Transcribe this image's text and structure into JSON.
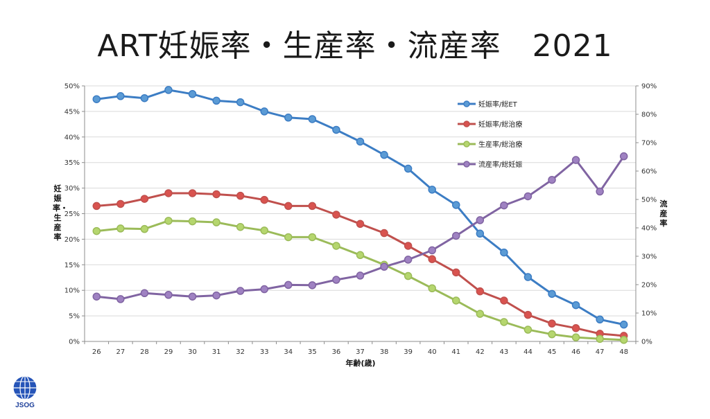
{
  "title": "ART妊娠率・生産率・流産率　2021",
  "logo_text": "JSOG",
  "chart_data": {
    "type": "line",
    "x": [
      26,
      27,
      28,
      29,
      30,
      31,
      32,
      33,
      34,
      35,
      36,
      37,
      38,
      39,
      40,
      41,
      42,
      43,
      44,
      45,
      46,
      47,
      48
    ],
    "xlabel": "年齢(歳)",
    "ylabel_left": "妊娠率・生産率",
    "ylabel_right": "流産率",
    "ylim_left": [
      0,
      50
    ],
    "ylim_right": [
      0,
      90
    ],
    "yticks_left": [
      "0%",
      "5%",
      "10%",
      "15%",
      "20%",
      "25%",
      "30%",
      "35%",
      "40%",
      "45%",
      "50%"
    ],
    "yticks_right": [
      "0%",
      "10%",
      "20%",
      "30%",
      "40%",
      "50%",
      "60%",
      "70%",
      "80%",
      "90%"
    ],
    "legend_position": "top-right-inside",
    "grid": true,
    "series": [
      {
        "name": "妊娠率/総ET",
        "axis": "left",
        "color": "#3c7dc4",
        "marker_color": "#5b9bd5",
        "values": [
          47.4,
          48.0,
          47.6,
          49.2,
          48.4,
          47.1,
          46.8,
          45.0,
          43.8,
          43.5,
          41.4,
          39.1,
          36.5,
          33.8,
          29.7,
          26.7,
          21.1,
          17.4,
          12.6,
          9.3,
          7.1,
          4.3,
          3.3
        ]
      },
      {
        "name": "妊娠率/総治療",
        "axis": "left",
        "color": "#c0504d",
        "marker_color": "#d9534f",
        "values": [
          26.5,
          26.9,
          27.9,
          29.0,
          29.0,
          28.8,
          28.5,
          27.7,
          26.5,
          26.5,
          24.8,
          23.0,
          21.2,
          18.7,
          16.1,
          13.5,
          9.8,
          8.0,
          5.2,
          3.5,
          2.6,
          1.5,
          1.1
        ]
      },
      {
        "name": "生産率/総治療",
        "axis": "left",
        "color": "#9bbb59",
        "marker_color": "#b5d66e",
        "values": [
          21.6,
          22.1,
          22.0,
          23.6,
          23.5,
          23.3,
          22.4,
          21.7,
          20.4,
          20.4,
          18.7,
          16.9,
          15.0,
          12.8,
          10.4,
          8.0,
          5.4,
          3.8,
          2.3,
          1.4,
          0.8,
          0.5,
          0.3
        ]
      },
      {
        "name": "流産率/総妊娠",
        "axis": "right",
        "color": "#8064a2",
        "marker_color": "#9f82c2",
        "values": [
          15.8,
          14.9,
          17.0,
          16.4,
          15.8,
          16.2,
          17.8,
          18.4,
          19.9,
          19.8,
          21.7,
          23.2,
          26.3,
          28.8,
          32.1,
          37.2,
          42.7,
          47.9,
          51.1,
          56.9,
          63.9,
          52.8,
          65.2
        ]
      }
    ]
  }
}
